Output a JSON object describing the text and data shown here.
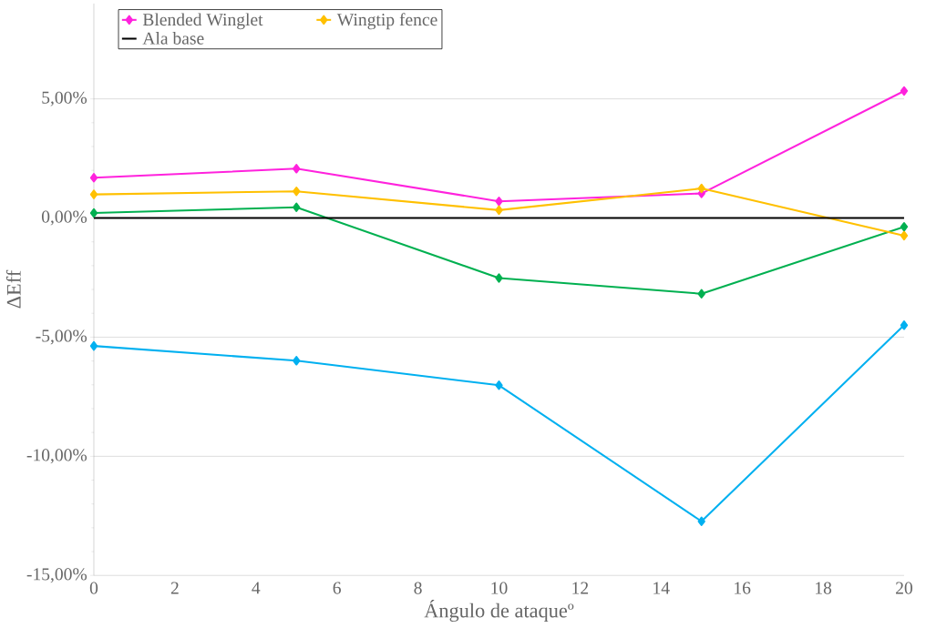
{
  "chart_data": {
    "type": "line",
    "xlabel": "Ángulo de ataqueº",
    "ylabel": "ΔEff",
    "x": [
      0,
      5,
      10,
      15,
      20
    ],
    "series": [
      {
        "name": "Blended Winglet",
        "color": "#ff22dd",
        "values": [
          1.69,
          2.07,
          0.7,
          1.03,
          5.33
        ]
      },
      {
        "color": "#00b0f0",
        "values": [
          -5.37,
          -5.99,
          -7.02,
          -12.73,
          -4.5
        ]
      },
      {
        "color": "#00b050",
        "values": [
          0.21,
          0.45,
          -2.52,
          -3.18,
          -0.37
        ]
      },
      {
        "name": "Wingtip fence",
        "color": "#ffc000",
        "values": [
          0.99,
          1.12,
          0.33,
          1.24,
          -0.74
        ]
      },
      {
        "name": "Ala base",
        "color": "#000000",
        "values": [
          0,
          0,
          0,
          0,
          0
        ],
        "marker": "none"
      }
    ],
    "xlim": [
      0,
      20
    ],
    "ylim": [
      -15,
      9
    ],
    "xticks": [
      0,
      2,
      4,
      6,
      8,
      10,
      12,
      14,
      16,
      18,
      20
    ],
    "yticks": [
      {
        "value": -15,
        "label": "-15,00%"
      },
      {
        "value": -10,
        "label": "-10,00%"
      },
      {
        "value": -5,
        "label": "-5,00%"
      },
      {
        "value": 0,
        "label": "0,00%"
      },
      {
        "value": 5,
        "label": "5,00%"
      }
    ],
    "grid": "y",
    "legend": "top left",
    "marker": "diamond",
    "line_style": "solid"
  }
}
